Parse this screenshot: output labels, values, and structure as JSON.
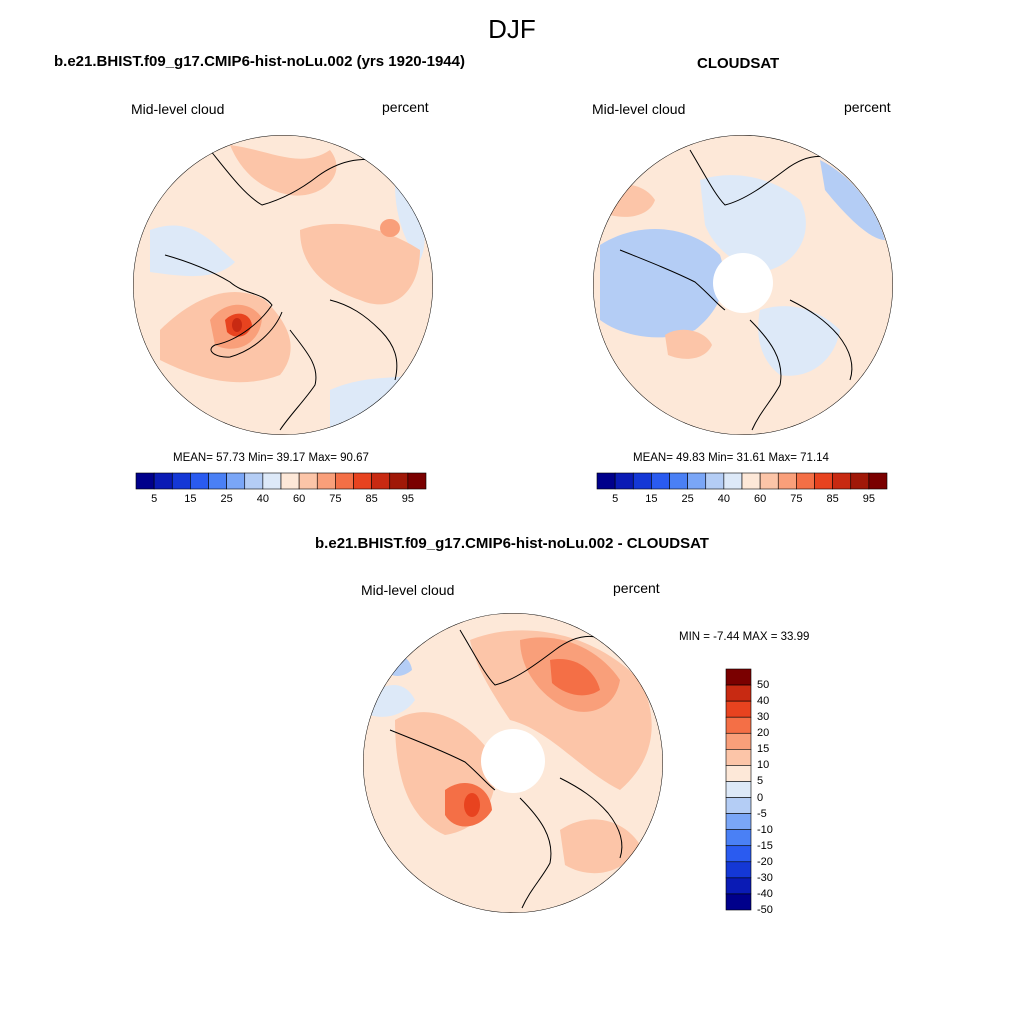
{
  "season": "DJF",
  "colors": {
    "abs_scale": [
      "#00008b",
      "#0a1bb5",
      "#1438d6",
      "#2a5bf0",
      "#4a80f5",
      "#7aa6f7",
      "#b4cdf5",
      "#dde9f8",
      "#fde8d8",
      "#fcc5a8",
      "#f99f7a",
      "#f46f46",
      "#e8431f",
      "#c82a12",
      "#a01808",
      "#7a0000"
    ],
    "diff_scale": [
      "#00008b",
      "#0a1bb5",
      "#1438d6",
      "#2a5bf0",
      "#4a80f5",
      "#7aa6f7",
      "#b4cdf5",
      "#dde9f8",
      "#fde8d8",
      "#fcc5a8",
      "#f99f7a",
      "#f46f46",
      "#e8431f",
      "#c82a12",
      "#7a0000"
    ],
    "coast": "#000000"
  },
  "panels": {
    "model": {
      "title": "b.e21.BHIST.f09_g17.CMIP6-hist-noLu.002 (yrs 1920-1944)",
      "variable": "Mid-level cloud",
      "units": "percent",
      "stats": "MEAN=  57.73  Min=  39.17  Max=  90.67"
    },
    "obs": {
      "title": "CLOUDSAT",
      "variable": "Mid-level cloud",
      "units": "percent",
      "stats": "MEAN=  49.83  Min=  31.61  Max=  71.14"
    },
    "diff": {
      "title": "b.e21.BHIST.f09_g17.CMIP6-hist-noLu.002 - CLOUDSAT",
      "variable": "Mid-level cloud",
      "units": "percent",
      "stats": "MIN =  -7.44 MAX =  33.99"
    }
  },
  "colorbar_abs_ticks": [
    "5",
    "15",
    "25",
    "40",
    "60",
    "75",
    "85",
    "95"
  ],
  "colorbar_diff_ticks": [
    "50",
    "40",
    "30",
    "20",
    "15",
    "10",
    "5",
    "0",
    "-5",
    "-10",
    "-15",
    "-20",
    "-30",
    "-40",
    "-50"
  ]
}
